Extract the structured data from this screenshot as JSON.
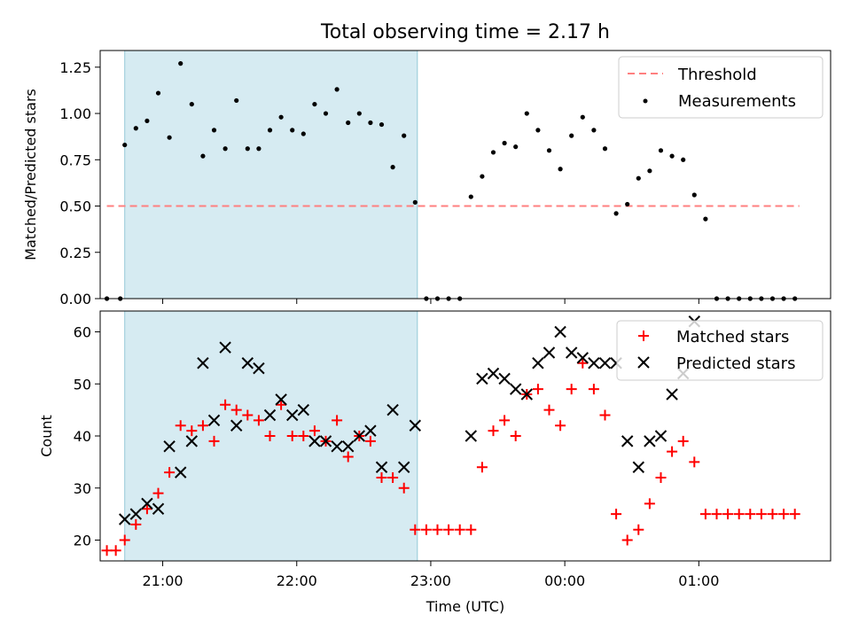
{
  "chart_data": [
    {
      "type": "scatter",
      "title": "Total observing time = 2.17 h",
      "xlabel": "",
      "ylabel": "Matched/Predicted stars",
      "xlim": [
        "20:32",
        "01:59"
      ],
      "ylim": [
        0,
        1.34
      ],
      "y_ticks": [
        "0.00",
        "0.25",
        "0.50",
        "0.75",
        "1.00",
        "1.25"
      ],
      "shaded_region": [
        "20:43",
        "22:54"
      ],
      "threshold": {
        "label": "Threshold",
        "value": 0.5,
        "x_range": [
          "20:35",
          "01:45"
        ],
        "color": "#ff7f7f"
      },
      "legend": {
        "placement": "upper-right",
        "threshold_label": "Threshold",
        "measurements_label": "Measurements"
      },
      "series": [
        {
          "name": "Measurements",
          "color": "#000000",
          "points": [
            [
              "20:35",
              0.0
            ],
            [
              "20:41",
              0.0
            ],
            [
              "20:43",
              0.83
            ],
            [
              "20:48",
              0.92
            ],
            [
              "20:53",
              0.96
            ],
            [
              "20:58",
              1.11
            ],
            [
              "21:03",
              0.87
            ],
            [
              "21:08",
              1.27
            ],
            [
              "21:13",
              1.05
            ],
            [
              "21:18",
              0.77
            ],
            [
              "21:23",
              0.91
            ],
            [
              "21:28",
              0.81
            ],
            [
              "21:33",
              1.07
            ],
            [
              "21:38",
              0.81
            ],
            [
              "21:43",
              0.81
            ],
            [
              "21:48",
              0.91
            ],
            [
              "21:53",
              0.98
            ],
            [
              "21:58",
              0.91
            ],
            [
              "22:03",
              0.89
            ],
            [
              "22:08",
              1.05
            ],
            [
              "22:13",
              1.0
            ],
            [
              "22:18",
              1.13
            ],
            [
              "22:23",
              0.95
            ],
            [
              "22:28",
              1.0
            ],
            [
              "22:33",
              0.95
            ],
            [
              "22:38",
              0.94
            ],
            [
              "22:43",
              0.71
            ],
            [
              "22:48",
              0.88
            ],
            [
              "22:53",
              0.52
            ],
            [
              "22:58",
              0.0
            ],
            [
              "23:03",
              0.0
            ],
            [
              "23:08",
              0.0
            ],
            [
              "23:13",
              0.0
            ],
            [
              "23:18",
              0.55
            ],
            [
              "23:23",
              0.66
            ],
            [
              "23:28",
              0.79
            ],
            [
              "23:33",
              0.84
            ],
            [
              "23:38",
              0.82
            ],
            [
              "23:43",
              1.0
            ],
            [
              "23:48",
              0.91
            ],
            [
              "23:53",
              0.8
            ],
            [
              "23:58",
              0.7
            ],
            [
              "00:03",
              0.88
            ],
            [
              "00:08",
              0.98
            ],
            [
              "00:13",
              0.91
            ],
            [
              "00:18",
              0.81
            ],
            [
              "00:23",
              0.46
            ],
            [
              "00:28",
              0.51
            ],
            [
              "00:33",
              0.65
            ],
            [
              "00:38",
              0.69
            ],
            [
              "00:43",
              0.8
            ],
            [
              "00:48",
              0.77
            ],
            [
              "00:53",
              0.75
            ],
            [
              "00:58",
              0.56
            ],
            [
              "01:03",
              0.43
            ],
            [
              "01:08",
              0.0
            ],
            [
              "01:13",
              0.0
            ],
            [
              "01:18",
              0.0
            ],
            [
              "01:23",
              0.0
            ],
            [
              "01:28",
              0.0
            ],
            [
              "01:33",
              0.0
            ],
            [
              "01:38",
              0.0
            ],
            [
              "01:43",
              0.0
            ]
          ]
        }
      ]
    },
    {
      "type": "scatter",
      "title": "",
      "xlabel": "Time (UTC)",
      "ylabel": "Count",
      "xlim": [
        "20:32",
        "01:59"
      ],
      "ylim": [
        16,
        64
      ],
      "x_ticks": [
        "21:00",
        "22:00",
        "23:00",
        "00:00",
        "01:00"
      ],
      "y_ticks": [
        "20",
        "30",
        "40",
        "50",
        "60"
      ],
      "shaded_region": [
        "20:43",
        "22:54"
      ],
      "legend": {
        "placement": "upper-right",
        "matched_label": "Matched stars",
        "predicted_label": "Predicted stars"
      },
      "series": [
        {
          "name": "Matched stars",
          "marker": "+",
          "color": "#ff0000",
          "points": [
            [
              "20:35",
              18
            ],
            [
              "20:39",
              18
            ],
            [
              "20:43",
              20
            ],
            [
              "20:48",
              23
            ],
            [
              "20:53",
              26
            ],
            [
              "20:58",
              29
            ],
            [
              "21:03",
              33
            ],
            [
              "21:08",
              42
            ],
            [
              "21:13",
              41
            ],
            [
              "21:18",
              42
            ],
            [
              "21:23",
              39
            ],
            [
              "21:28",
              46
            ],
            [
              "21:33",
              45
            ],
            [
              "21:38",
              44
            ],
            [
              "21:43",
              43
            ],
            [
              "21:48",
              40
            ],
            [
              "21:53",
              46
            ],
            [
              "21:58",
              40
            ],
            [
              "22:03",
              40
            ],
            [
              "22:08",
              41
            ],
            [
              "22:13",
              39
            ],
            [
              "22:18",
              43
            ],
            [
              "22:23",
              36
            ],
            [
              "22:28",
              40
            ],
            [
              "22:33",
              39
            ],
            [
              "22:38",
              32
            ],
            [
              "22:43",
              32
            ],
            [
              "22:48",
              30
            ],
            [
              "22:53",
              22
            ],
            [
              "22:58",
              22
            ],
            [
              "23:03",
              22
            ],
            [
              "23:08",
              22
            ],
            [
              "23:13",
              22
            ],
            [
              "23:18",
              22
            ],
            [
              "23:23",
              34
            ],
            [
              "23:28",
              41
            ],
            [
              "23:33",
              43
            ],
            [
              "23:38",
              40
            ],
            [
              "23:43",
              48
            ],
            [
              "23:48",
              49
            ],
            [
              "23:53",
              45
            ],
            [
              "23:58",
              42
            ],
            [
              "00:03",
              49
            ],
            [
              "00:08",
              54
            ],
            [
              "00:13",
              49
            ],
            [
              "00:18",
              44
            ],
            [
              "00:23",
              25
            ],
            [
              "00:28",
              20
            ],
            [
              "00:33",
              22
            ],
            [
              "00:38",
              27
            ],
            [
              "00:43",
              32
            ],
            [
              "00:48",
              37
            ],
            [
              "00:53",
              39
            ],
            [
              "00:58",
              35
            ],
            [
              "01:03",
              25
            ],
            [
              "01:08",
              25
            ],
            [
              "01:13",
              25
            ],
            [
              "01:18",
              25
            ],
            [
              "01:23",
              25
            ],
            [
              "01:28",
              25
            ],
            [
              "01:33",
              25
            ],
            [
              "01:38",
              25
            ],
            [
              "01:43",
              25
            ]
          ]
        },
        {
          "name": "Predicted stars",
          "marker": "x",
          "color": "#000000",
          "points": [
            [
              "20:43",
              24
            ],
            [
              "20:48",
              25
            ],
            [
              "20:53",
              27
            ],
            [
              "20:58",
              26
            ],
            [
              "21:03",
              38
            ],
            [
              "21:08",
              33
            ],
            [
              "21:13",
              39
            ],
            [
              "21:18",
              54
            ],
            [
              "21:23",
              43
            ],
            [
              "21:28",
              57
            ],
            [
              "21:33",
              42
            ],
            [
              "21:38",
              54
            ],
            [
              "21:43",
              53
            ],
            [
              "21:48",
              44
            ],
            [
              "21:53",
              47
            ],
            [
              "21:58",
              44
            ],
            [
              "22:03",
              45
            ],
            [
              "22:08",
              39
            ],
            [
              "22:13",
              39
            ],
            [
              "22:18",
              38
            ],
            [
              "22:23",
              38
            ],
            [
              "22:28",
              40
            ],
            [
              "22:33",
              41
            ],
            [
              "22:38",
              34
            ],
            [
              "22:43",
              45
            ],
            [
              "22:48",
              34
            ],
            [
              "22:53",
              42
            ],
            [
              "23:18",
              40
            ],
            [
              "23:23",
              51
            ],
            [
              "23:28",
              52
            ],
            [
              "23:33",
              51
            ],
            [
              "23:38",
              49
            ],
            [
              "23:43",
              48
            ],
            [
              "23:48",
              54
            ],
            [
              "23:53",
              56
            ],
            [
              "23:58",
              60
            ],
            [
              "00:03",
              56
            ],
            [
              "00:08",
              55
            ],
            [
              "00:13",
              54
            ],
            [
              "00:18",
              54
            ],
            [
              "00:23",
              54
            ],
            [
              "00:28",
              39
            ],
            [
              "00:33",
              34
            ],
            [
              "00:38",
              39
            ],
            [
              "00:43",
              40
            ],
            [
              "00:48",
              48
            ],
            [
              "00:53",
              52
            ],
            [
              "00:58",
              62
            ]
          ]
        }
      ]
    }
  ]
}
